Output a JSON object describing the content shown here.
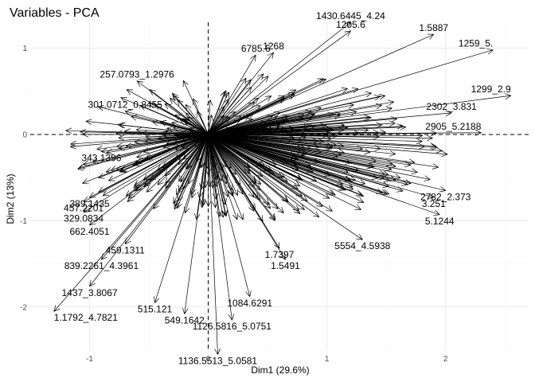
{
  "chart_data": {
    "type": "scatter",
    "subtype": "pca-variable-correlation-circle",
    "title": "Variables - PCA",
    "xlabel": "Dim1 (29.6%)",
    "ylabel": "Dim2 (13%)",
    "xlim": [
      -1.5,
      2.7
    ],
    "ylim": [
      -2.5,
      1.3
    ],
    "xticks": [
      -1,
      0,
      1,
      2
    ],
    "yticks": [
      -2,
      -1,
      0,
      1
    ],
    "xtick_labels": [
      "-1",
      "0",
      "1",
      "2"
    ],
    "ytick_labels": [
      "-2",
      "-1",
      "0",
      "1"
    ],
    "grid": true,
    "reference_lines": {
      "x": 0,
      "y": 0,
      "style": "dashed"
    },
    "arrow_color": "#000000",
    "variables": [
      {
        "name": "1430.6445_4.24",
        "x": 1.2,
        "y": 1.3
      },
      {
        "name": "257.0793_1.2976",
        "x": -0.6,
        "y": 0.62
      },
      {
        "name": "301.0712_0.8455",
        "x": -0.7,
        "y": 0.27
      },
      {
        "name": "343.1396",
        "x": -0.9,
        "y": -0.2
      },
      {
        "name": "389.1435",
        "x": -1.0,
        "y": -0.73
      },
      {
        "name": "457.2201",
        "x": -1.05,
        "y": -0.78
      },
      {
        "name": "329.0834",
        "x": -1.05,
        "y": -0.9
      },
      {
        "name": "662.4051",
        "x": -1.0,
        "y": -1.05
      },
      {
        "name": "459.1311",
        "x": -0.7,
        "y": -1.27
      },
      {
        "name": "839.2261_4.3961",
        "x": -0.9,
        "y": -1.45
      },
      {
        "name": "1437_3.8067",
        "x": -1.0,
        "y": -1.76
      },
      {
        "name": "1.1792_4.7821",
        "x": -1.3,
        "y": -2.05
      },
      {
        "name": "515.121",
        "x": -0.45,
        "y": -1.95
      },
      {
        "name": "549.1642",
        "x": -0.2,
        "y": -2.08
      },
      {
        "name": "1126.5816_5.0751",
        "x": 0.2,
        "y": -2.15
      },
      {
        "name": "1136.5513_5.0581",
        "x": 0.08,
        "y": -2.55
      },
      {
        "name": "1084.6291",
        "x": 0.35,
        "y": -1.88
      },
      {
        "name": "1.5491",
        "x": 0.65,
        "y": -1.45
      },
      {
        "name": "1.7397",
        "x": 0.6,
        "y": -1.32
      },
      {
        "name": "5554_4.5938",
        "x": 1.3,
        "y": -1.22
      },
      {
        "name": "5.1244",
        "x": 1.95,
        "y": -0.93
      },
      {
        "name": "2782_2.373",
        "x": 2.0,
        "y": -0.65
      },
      {
        "name": "3.251",
        "x": 1.9,
        "y": -0.73
      },
      {
        "name": "2905_5.2188",
        "x": 2.3,
        "y": 0.02
      },
      {
        "name": "2302_3.831",
        "x": 2.05,
        "y": 0.25
      },
      {
        "name": "1299_2.9",
        "x": 2.55,
        "y": 0.45
      },
      {
        "name": "1259_5.",
        "x": 2.4,
        "y": 0.98
      },
      {
        "name": "1.5887",
        "x": 1.9,
        "y": 1.16
      },
      {
        "name": "1205.6",
        "x": 1.2,
        "y": 1.2
      },
      {
        "name": "6785.6",
        "x": 0.4,
        "y": 0.92
      },
      {
        "name": "1268",
        "x": 0.55,
        "y": 0.95
      }
    ]
  }
}
